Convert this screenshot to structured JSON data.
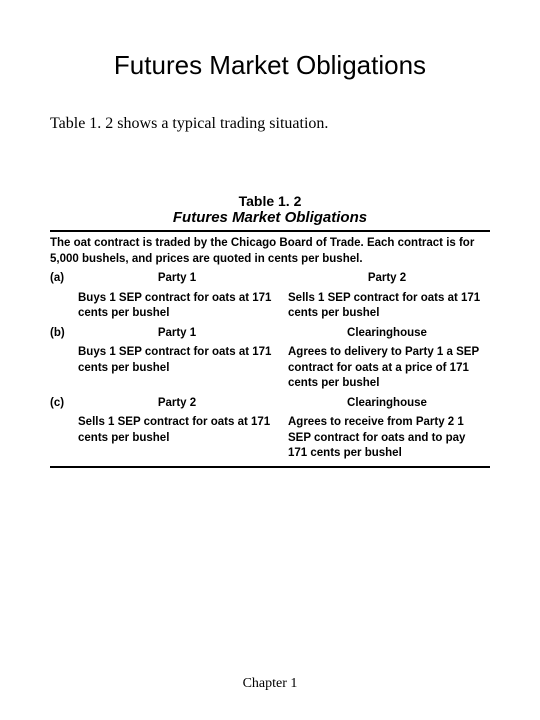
{
  "title": "Futures Market Obligations",
  "intro": "Table 1. 2 shows a typical trading situation.",
  "table": {
    "label": "Table 1. 2",
    "name": "Futures Market Obligations",
    "caption": "The oat contract is traded by the Chicago Board of Trade. Each contract is for 5,000 bushels, and prices are quoted in cents per bushel.",
    "rows": [
      {
        "tag": "(a)",
        "leftHeader": "Party 1",
        "rightHeader": "Party 2",
        "leftBody": "Buys 1 SEP contract for oats at 171 cents per bushel",
        "rightBody": "Sells 1 SEP contract for oats at 171 cents per bushel"
      },
      {
        "tag": "(b)",
        "leftHeader": "Party 1",
        "rightHeader": "Clearinghouse",
        "leftBody": "Buys 1 SEP contract for oats at 171 cents per bushel",
        "rightBody": "Agrees to delivery to Party 1 a SEP contract for oats at a price of 171 cents per bushel"
      },
      {
        "tag": "(c)",
        "leftHeader": "Party 2",
        "rightHeader": "Clearinghouse",
        "leftBody": "Sells 1 SEP contract for oats at 171 cents per bushel",
        "rightBody": "Agrees to receive from Party 2 1 SEP contract for oats and to pay 171 cents per bushel"
      }
    ]
  },
  "footer": "Chapter 1",
  "style": {
    "page_bg": "#ffffff",
    "text_color": "#000000",
    "title_fontsize": 26,
    "intro_fontsize": 16,
    "table_fontsize": 11.5,
    "rule_color": "#000000"
  }
}
